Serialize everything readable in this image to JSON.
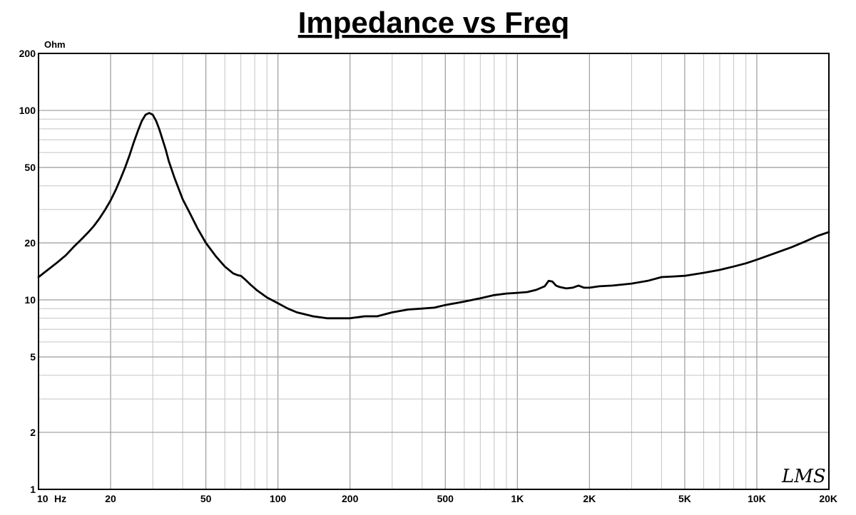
{
  "chart_data": {
    "type": "line",
    "title": "Impedance vs Freq",
    "ylabel": "Ohm",
    "xlabel": "Hz",
    "x_scale": "log",
    "y_scale": "log",
    "xlim": [
      10,
      20000
    ],
    "ylim": [
      1,
      200
    ],
    "grid": true,
    "x_ticks": [
      {
        "value": 10,
        "label": "10"
      },
      {
        "value": 20,
        "label": "20"
      },
      {
        "value": 50,
        "label": "50"
      },
      {
        "value": 100,
        "label": "100"
      },
      {
        "value": 200,
        "label": "200"
      },
      {
        "value": 500,
        "label": "500"
      },
      {
        "value": 1000,
        "label": "1K"
      },
      {
        "value": 2000,
        "label": "2K"
      },
      {
        "value": 5000,
        "label": "5K"
      },
      {
        "value": 10000,
        "label": "10K"
      },
      {
        "value": 20000,
        "label": "20K"
      }
    ],
    "y_ticks": [
      {
        "value": 1,
        "label": "1"
      },
      {
        "value": 2,
        "label": "2"
      },
      {
        "value": 5,
        "label": "5"
      },
      {
        "value": 10,
        "label": "10"
      },
      {
        "value": 20,
        "label": "20"
      },
      {
        "value": 50,
        "label": "50"
      },
      {
        "value": 100,
        "label": "100"
      },
      {
        "value": 200,
        "label": "200"
      }
    ],
    "series": [
      {
        "x": [
          10,
          11,
          12,
          13,
          14,
          15,
          16,
          17,
          18,
          19,
          20,
          21,
          22,
          23,
          24,
          25,
          26,
          27,
          28,
          29,
          30,
          31,
          32,
          33,
          34,
          35,
          37,
          40,
          43,
          46,
          50,
          55,
          60,
          65,
          68,
          70,
          73,
          77,
          82,
          90,
          100,
          110,
          120,
          140,
          160,
          180,
          200,
          230,
          260,
          300,
          350,
          400,
          450,
          500,
          550,
          600,
          700,
          800,
          900,
          1000,
          1100,
          1200,
          1300,
          1350,
          1400,
          1450,
          1500,
          1600,
          1700,
          1800,
          1900,
          2000,
          2200,
          2500,
          3000,
          3500,
          4000,
          4500,
          5000,
          6000,
          7000,
          8000,
          9000,
          10000,
          12000,
          14000,
          16000,
          18000,
          20000
        ],
        "values": [
          13.2,
          14.5,
          15.8,
          17.2,
          19.0,
          20.7,
          22.5,
          24.5,
          27.0,
          30.0,
          33.5,
          38.0,
          43.5,
          50.0,
          58.0,
          68.0,
          78.0,
          88.0,
          95.0,
          97.0,
          95.0,
          88.0,
          79.0,
          70.0,
          62.0,
          54.0,
          44.0,
          34.0,
          28.5,
          24.0,
          20.0,
          17.0,
          15.0,
          13.8,
          13.5,
          13.4,
          12.8,
          12.0,
          11.2,
          10.3,
          9.6,
          9.0,
          8.6,
          8.2,
          8.0,
          8.0,
          8.0,
          8.2,
          8.2,
          8.6,
          8.9,
          9.0,
          9.1,
          9.4,
          9.6,
          9.8,
          10.2,
          10.6,
          10.8,
          10.9,
          11.0,
          11.3,
          11.8,
          12.6,
          12.5,
          11.9,
          11.7,
          11.5,
          11.6,
          11.9,
          11.6,
          11.6,
          11.8,
          11.9,
          12.2,
          12.6,
          13.2,
          13.3,
          13.4,
          13.9,
          14.4,
          15.0,
          15.6,
          16.3,
          17.7,
          19.0,
          20.4,
          21.8,
          22.8
        ]
      }
    ]
  },
  "watermark": "LMS"
}
